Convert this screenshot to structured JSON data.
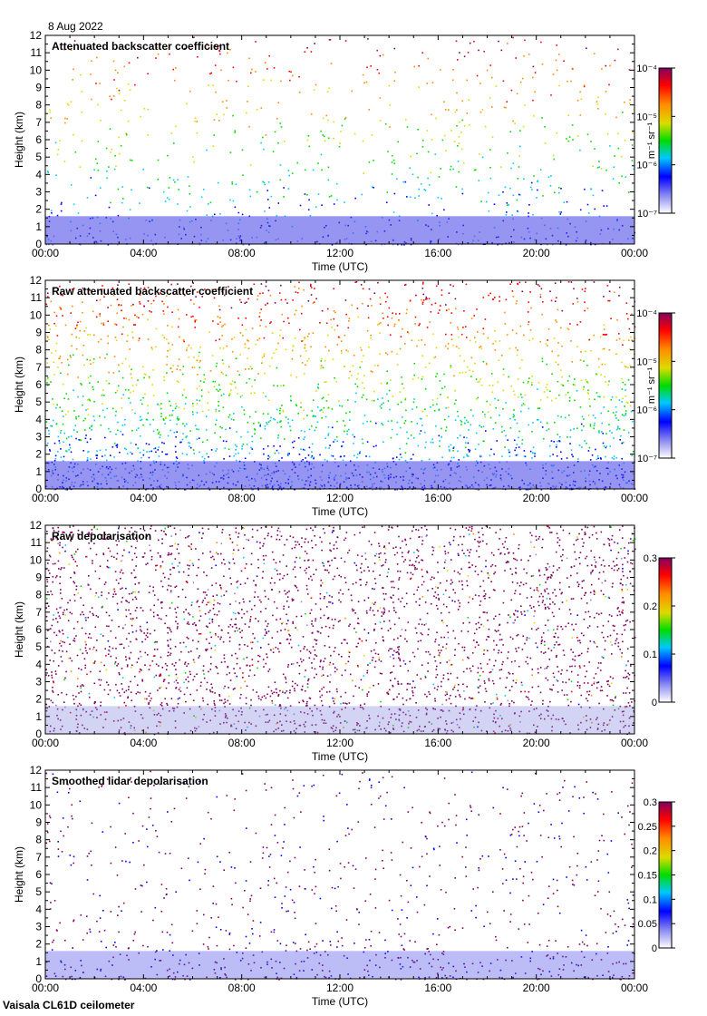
{
  "date": "8 Aug 2022",
  "instrument": "Vaisala CL61D ceilometer",
  "chart_data": [
    {
      "type": "heatmap",
      "title": "Attenuated backscatter coefficient",
      "xlabel": "Time (UTC)",
      "ylabel": "Height (km)",
      "x_ticks": [
        "00:00",
        "04:00",
        "08:00",
        "12:00",
        "16:00",
        "20:00",
        "00:00"
      ],
      "y_ticks": [
        "0",
        "1",
        "2",
        "3",
        "4",
        "5",
        "6",
        "7",
        "8",
        "9",
        "10",
        "11",
        "12"
      ],
      "ylim": [
        0,
        12
      ],
      "colorbar": {
        "scale": "log",
        "range": [
          1e-07,
          0.0001
        ],
        "ticks": [
          "10⁻⁷",
          "10⁻⁶",
          "10⁻⁵",
          "10⁻⁴"
        ],
        "label": "m⁻¹ sr⁻¹"
      }
    },
    {
      "type": "heatmap",
      "title": "Raw attenuated backscatter coefficient",
      "xlabel": "Time (UTC)",
      "ylabel": "Height (km)",
      "x_ticks": [
        "00:00",
        "04:00",
        "08:00",
        "12:00",
        "16:00",
        "20:00",
        "00:00"
      ],
      "y_ticks": [
        "0",
        "1",
        "2",
        "3",
        "4",
        "5",
        "6",
        "7",
        "8",
        "9",
        "10",
        "11",
        "12"
      ],
      "ylim": [
        0,
        12
      ],
      "colorbar": {
        "scale": "log",
        "range": [
          1e-07,
          0.0001
        ],
        "ticks": [
          "10⁻⁷",
          "10⁻⁶",
          "10⁻⁵",
          "10⁻⁴"
        ],
        "label": "m⁻¹ sr⁻¹"
      }
    },
    {
      "type": "heatmap",
      "title": "Raw depolarisation",
      "xlabel": "Time (UTC)",
      "ylabel": "Height (km)",
      "x_ticks": [
        "00:00",
        "04:00",
        "08:00",
        "12:00",
        "16:00",
        "20:00",
        "00:00"
      ],
      "y_ticks": [
        "0",
        "1",
        "2",
        "3",
        "4",
        "5",
        "6",
        "7",
        "8",
        "9",
        "10",
        "11",
        "12"
      ],
      "ylim": [
        0,
        12
      ],
      "colorbar": {
        "scale": "linear",
        "range": [
          0,
          0.3
        ],
        "ticks": [
          "0",
          "0.1",
          "0.2",
          "0.3"
        ],
        "label": ""
      }
    },
    {
      "type": "heatmap",
      "title": "Smoothed lidar depolarisation",
      "xlabel": "Time (UTC)",
      "ylabel": "Height (km)",
      "x_ticks": [
        "00:00",
        "04:00",
        "08:00",
        "12:00",
        "16:00",
        "20:00",
        "00:00"
      ],
      "y_ticks": [
        "0",
        "1",
        "2",
        "3",
        "4",
        "5",
        "6",
        "7",
        "8",
        "9",
        "10",
        "11",
        "12"
      ],
      "ylim": [
        0,
        12
      ],
      "colorbar": {
        "scale": "linear",
        "range": [
          0,
          0.3
        ],
        "ticks": [
          "0",
          "0.05",
          "0.1",
          "0.15",
          "0.2",
          "0.25",
          "0.3"
        ],
        "label": ""
      }
    }
  ]
}
